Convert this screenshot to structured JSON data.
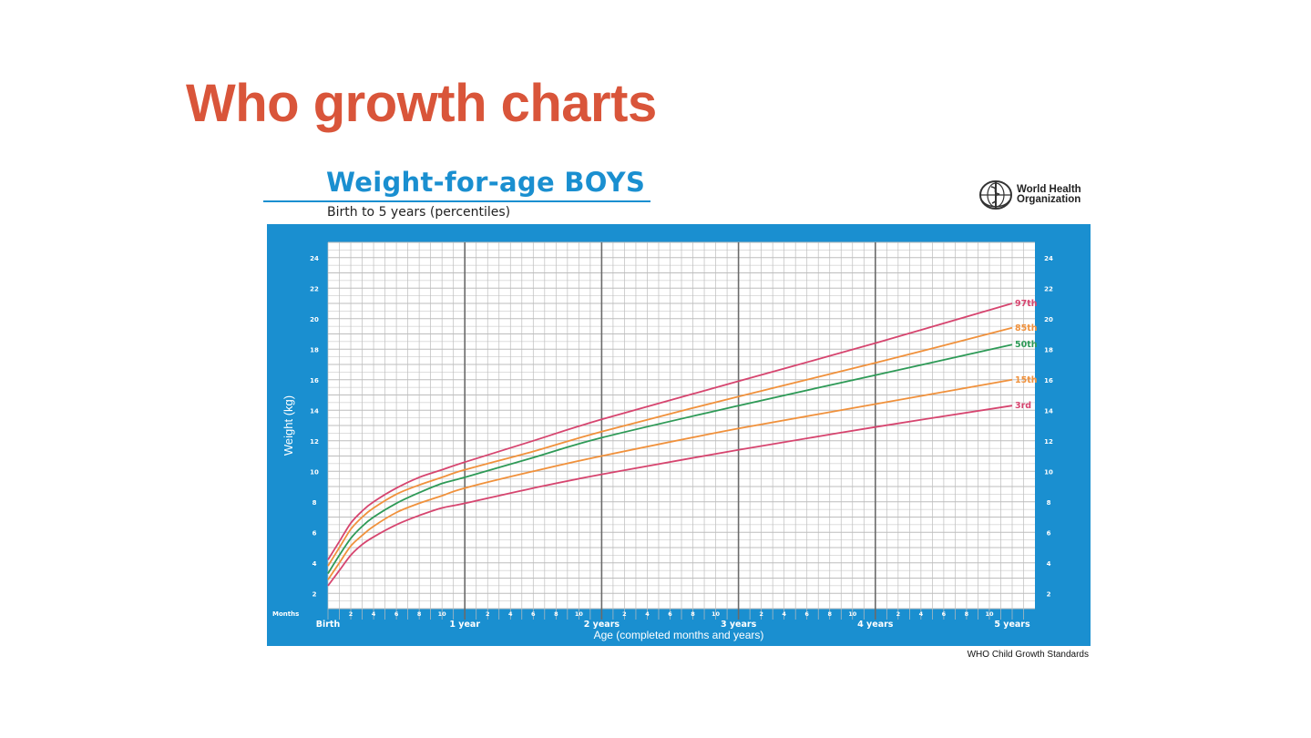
{
  "slide": {
    "title": "Who growth charts"
  },
  "header": {
    "chart_title": "Weight-for-age BOYS",
    "subtitle": "Birth to 5 years (percentiles)",
    "org_name_line1": "World Health",
    "org_name_line2": "Organization"
  },
  "footer": {
    "source": "WHO Child Growth Standards"
  },
  "colors": {
    "frame": "#1a8fd0",
    "title": "#d9553a",
    "grid": "#bdbdbd",
    "year_line": "#6a6a6a"
  },
  "icons": {
    "org_emblem": "who-emblem-icon"
  },
  "chart_data": {
    "type": "line",
    "title": "Weight-for-age BOYS",
    "subtitle": "Birth to 5 years (percentiles)",
    "xlabel": "Age (completed months and years)",
    "ylabel": "Weight (kg)",
    "months_label": "Months",
    "xlim": [
      0,
      60
    ],
    "ylim": [
      1,
      25
    ],
    "y_ticks": [
      2,
      4,
      6,
      8,
      10,
      12,
      14,
      16,
      18,
      20,
      22,
      24
    ],
    "x_month_ticks": [
      {
        "m": 2,
        "label": "2"
      },
      {
        "m": 4,
        "label": "4"
      },
      {
        "m": 6,
        "label": "6"
      },
      {
        "m": 8,
        "label": "8"
      },
      {
        "m": 10,
        "label": "10"
      },
      {
        "m": 14,
        "label": "2"
      },
      {
        "m": 16,
        "label": "4"
      },
      {
        "m": 18,
        "label": "6"
      },
      {
        "m": 20,
        "label": "8"
      },
      {
        "m": 22,
        "label": "10"
      },
      {
        "m": 26,
        "label": "2"
      },
      {
        "m": 28,
        "label": "4"
      },
      {
        "m": 30,
        "label": "6"
      },
      {
        "m": 32,
        "label": "8"
      },
      {
        "m": 34,
        "label": "10"
      },
      {
        "m": 38,
        "label": "2"
      },
      {
        "m": 40,
        "label": "4"
      },
      {
        "m": 42,
        "label": "6"
      },
      {
        "m": 44,
        "label": "8"
      },
      {
        "m": 46,
        "label": "10"
      },
      {
        "m": 50,
        "label": "2"
      },
      {
        "m": 52,
        "label": "4"
      },
      {
        "m": 54,
        "label": "6"
      },
      {
        "m": 56,
        "label": "8"
      },
      {
        "m": 58,
        "label": "10"
      }
    ],
    "x_year_ticks": [
      {
        "m": 0,
        "label": "Birth"
      },
      {
        "m": 12,
        "label": "1 year"
      },
      {
        "m": 24,
        "label": "2 years"
      },
      {
        "m": 36,
        "label": "3 years"
      },
      {
        "m": 48,
        "label": "4 years"
      },
      {
        "m": 60,
        "label": "5 years"
      }
    ],
    "grid": true,
    "x": [
      0,
      1,
      2,
      3,
      4,
      6,
      8,
      10,
      12,
      18,
      24,
      36,
      48,
      60
    ],
    "series": [
      {
        "name": "97th",
        "color": "#d6456f",
        "values": [
          4.2,
          5.4,
          6.6,
          7.4,
          8.0,
          8.9,
          9.6,
          10.1,
          10.6,
          12.0,
          13.4,
          15.9,
          18.4,
          21.0
        ]
      },
      {
        "name": "85th",
        "color": "#f0913c",
        "values": [
          3.8,
          5.0,
          6.2,
          7.0,
          7.6,
          8.5,
          9.1,
          9.6,
          10.1,
          11.3,
          12.6,
          14.9,
          17.1,
          19.4
        ]
      },
      {
        "name": "50th",
        "color": "#2e9a57",
        "values": [
          3.3,
          4.5,
          5.6,
          6.4,
          7.0,
          7.9,
          8.6,
          9.2,
          9.6,
          10.9,
          12.2,
          14.3,
          16.3,
          18.3
        ]
      },
      {
        "name": "15th",
        "color": "#f0913c",
        "values": [
          2.9,
          4.0,
          5.1,
          5.8,
          6.4,
          7.3,
          7.9,
          8.4,
          8.9,
          10.0,
          11.0,
          12.8,
          14.4,
          16.0
        ]
      },
      {
        "name": "3rd",
        "color": "#d6456f",
        "values": [
          2.5,
          3.5,
          4.5,
          5.2,
          5.7,
          6.5,
          7.1,
          7.6,
          7.9,
          8.9,
          9.8,
          11.4,
          12.9,
          14.3
        ]
      }
    ]
  }
}
